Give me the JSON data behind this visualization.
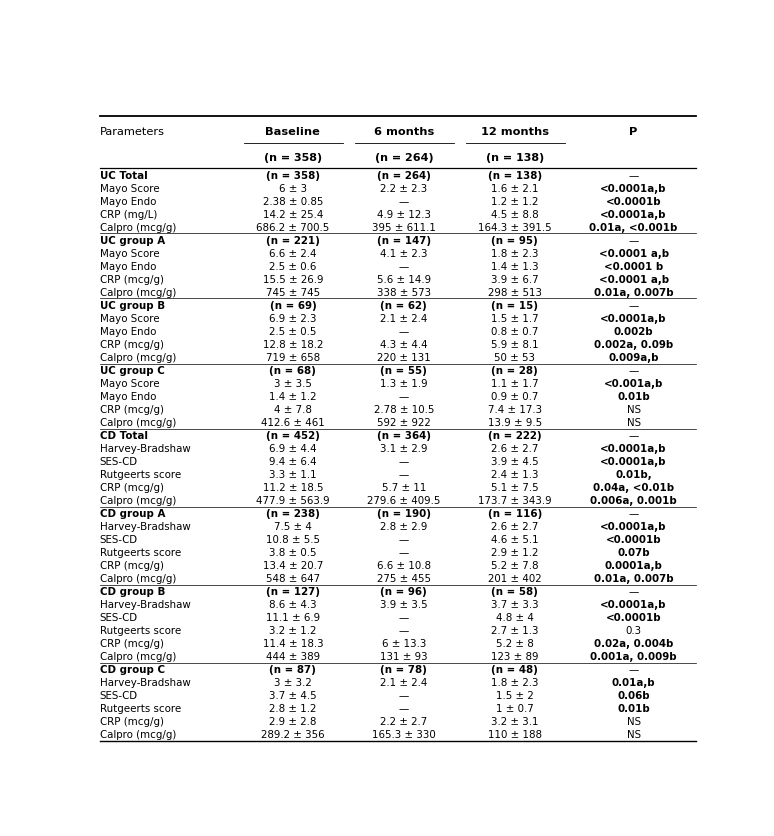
{
  "col_headers": [
    "Parameters",
    "Baseline",
    "6 months",
    "12 months",
    "P"
  ],
  "col_header_bold": [
    false,
    true,
    true,
    true,
    true
  ],
  "rows": [
    {
      "param": "UC Total",
      "baseline": "(n = 358)",
      "m6": "(n = 264)",
      "m12": "(n = 138)",
      "p": "",
      "is_group": true
    },
    {
      "param": "Mayo Score",
      "baseline": "6 ± 3",
      "m6": "2.2 ± 2.3",
      "m12": "1.6 ± 2.1",
      "p": "<0.0001a,b",
      "p_bold": true
    },
    {
      "param": "Mayo Endo",
      "baseline": "2.38 ± 0.85",
      "m6": "—",
      "m12": "1.2 ± 1.2",
      "p": "<0.0001b",
      "p_bold": true
    },
    {
      "param": "CRP (mg/L)",
      "baseline": "14.2 ± 25.4",
      "m6": "4.9 ± 12.3",
      "m12": "4.5 ± 8.8",
      "p": "<0.0001a,b",
      "p_bold": true
    },
    {
      "param": "Calpro (mcg/g)",
      "baseline": "686.2 ± 700.5",
      "m6": "395 ± 611.1",
      "m12": "164.3 ± 391.5",
      "p": "0.01a, <0.001b",
      "p_bold": true
    },
    {
      "param": "UC group A",
      "baseline": "(n = 221)",
      "m6": "(n = 147)",
      "m12": "(n = 95)",
      "p": "",
      "is_group": true
    },
    {
      "param": "Mayo Score",
      "baseline": "6.6 ± 2.4",
      "m6": "4.1 ± 2.3",
      "m12": "1.8 ± 2.3",
      "p": "<0.0001 a,b",
      "p_bold": true
    },
    {
      "param": "Mayo Endo",
      "baseline": "2.5 ± 0.6",
      "m6": "—",
      "m12": "1.4 ± 1.3",
      "p": "<0.0001 b",
      "p_bold": true
    },
    {
      "param": "CRP (mcg/g)",
      "baseline": "15.5 ± 26.9",
      "m6": "5.6 ± 14.9",
      "m12": "3.9 ± 6.7",
      "p": "<0.0001 a,b",
      "p_bold": true
    },
    {
      "param": "Calpro (mcg/g)",
      "baseline": "745 ± 745",
      "m6": "338 ± 573",
      "m12": "298 ± 513",
      "p": "0.01a, 0.007b",
      "p_bold": true
    },
    {
      "param": "UC group B",
      "baseline": "(n = 69)",
      "m6": "(n = 62)",
      "m12": "(n = 15)",
      "p": "",
      "is_group": true
    },
    {
      "param": "Mayo Score",
      "baseline": "6.9 ± 2.3",
      "m6": "2.1 ± 2.4",
      "m12": "1.5 ± 1.7",
      "p": "<0.0001a,b",
      "p_bold": true
    },
    {
      "param": "Mayo Endo",
      "baseline": "2.5 ± 0.5",
      "m6": "—",
      "m12": "0.8 ± 0.7",
      "p": "0.002b",
      "p_bold": true
    },
    {
      "param": "CRP (mcg/g)",
      "baseline": "12.8 ± 18.2",
      "m6": "4.3 ± 4.4",
      "m12": "5.9 ± 8.1",
      "p": "0.002a, 0.09b",
      "p_bold": true
    },
    {
      "param": "Calpro (mcg/g)",
      "baseline": "719 ± 658",
      "m6": "220 ± 131",
      "m12": "50 ± 53",
      "p": "0.009a,b",
      "p_bold": true
    },
    {
      "param": "UC group C",
      "baseline": "(n = 68)",
      "m6": "(n = 55)",
      "m12": "(n = 28)",
      "p": "",
      "is_group": true
    },
    {
      "param": "Mayo Score",
      "baseline": "3 ± 3.5",
      "m6": "1.3 ± 1.9",
      "m12": "1.1 ± 1.7",
      "p": "<0.001a,b",
      "p_bold": true
    },
    {
      "param": "Mayo Endo",
      "baseline": "1.4 ± 1.2",
      "m6": "—",
      "m12": "0.9 ± 0.7",
      "p": "0.01b",
      "p_bold": true
    },
    {
      "param": "CRP (mcg/g)",
      "baseline": "4 ± 7.8",
      "m6": "2.78 ± 10.5",
      "m12": "7.4 ± 17.3",
      "p": "NS",
      "p_bold": false
    },
    {
      "param": "Calpro (mcg/g)",
      "baseline": "412.6 ± 461",
      "m6": "592 ± 922",
      "m12": "13.9 ± 9.5",
      "p": "NS",
      "p_bold": false
    },
    {
      "param": "CD Total",
      "baseline": "(n = 452)",
      "m6": "(n = 364)",
      "m12": "(n = 222)",
      "p": "",
      "is_group": true
    },
    {
      "param": "Harvey-Bradshaw",
      "baseline": "6.9 ± 4.4",
      "m6": "3.1 ± 2.9",
      "m12": "2.6 ± 2.7",
      "p": "<0.0001a,b",
      "p_bold": true
    },
    {
      "param": "SES-CD",
      "baseline": "9.4 ± 6.4",
      "m6": "—",
      "m12": "3.9 ± 4.5",
      "p": "<0.0001a,b",
      "p_bold": true
    },
    {
      "param": "Rutgeerts score",
      "baseline": "3.3 ± 1.1",
      "m6": "—",
      "m12": "2.4 ± 1.3",
      "p": "0.01b,",
      "p_bold": true
    },
    {
      "param": "CRP (mcg/g)",
      "baseline": "11.2 ± 18.5",
      "m6": "5.7 ± 11",
      "m12": "5.1 ± 7.5",
      "p": "0.04a, <0.01b",
      "p_bold": true
    },
    {
      "param": "Calpro (mcg/g)",
      "baseline": "477.9 ± 563.9",
      "m6": "279.6 ± 409.5",
      "m12": "173.7 ± 343.9",
      "p": "0.006a, 0.001b",
      "p_bold": true
    },
    {
      "param": "CD group A",
      "baseline": "(n = 238)",
      "m6": "(n = 190)",
      "m12": "(n = 116)",
      "p": "",
      "is_group": true
    },
    {
      "param": "Harvey-Bradshaw",
      "baseline": "7.5 ± 4",
      "m6": "2.8 ± 2.9",
      "m12": "2.6 ± 2.7",
      "p": "<0.0001a,b",
      "p_bold": true
    },
    {
      "param": "SES-CD",
      "baseline": "10.8 ± 5.5",
      "m6": "—",
      "m12": "4.6 ± 5.1",
      "p": "<0.0001b",
      "p_bold": true
    },
    {
      "param": "Rutgeerts score",
      "baseline": "3.8 ± 0.5",
      "m6": "—",
      "m12": "2.9 ± 1.2",
      "p": "0.07b",
      "p_bold": true
    },
    {
      "param": "CRP (mcg/g)",
      "baseline": "13.4 ± 20.7",
      "m6": "6.6 ± 10.8",
      "m12": "5.2 ± 7.8",
      "p": "0.0001a,b",
      "p_bold": true
    },
    {
      "param": "Calpro (mcg/g)",
      "baseline": "548 ± 647",
      "m6": "275 ± 455",
      "m12": "201 ± 402",
      "p": "0.01a, 0.007b",
      "p_bold": true
    },
    {
      "param": "CD group B",
      "baseline": "(n = 127)",
      "m6": "(n = 96)",
      "m12": "(n = 58)",
      "p": "",
      "is_group": true
    },
    {
      "param": "Harvey-Bradshaw",
      "baseline": "8.6 ± 4.3",
      "m6": "3.9 ± 3.5",
      "m12": "3.7 ± 3.3",
      "p": "<0.0001a,b",
      "p_bold": true
    },
    {
      "param": "SES-CD",
      "baseline": "11.1 ± 6.9",
      "m6": "—",
      "m12": "4.8 ± 4",
      "p": "<0.0001b",
      "p_bold": true
    },
    {
      "param": "Rutgeerts score",
      "baseline": "3.2 ± 1.2",
      "m6": "—",
      "m12": "2.7 ± 1.3",
      "p": "0.3",
      "p_bold": false
    },
    {
      "param": "CRP (mcg/g)",
      "baseline": "11.4 ± 18.3",
      "m6": "6 ± 13.3",
      "m12": "5.2 ± 8",
      "p": "0.02a, 0.004b",
      "p_bold": true
    },
    {
      "param": "Calpro (mcg/g)",
      "baseline": "444 ± 389",
      "m6": "131 ± 93",
      "m12": "123 ± 89",
      "p": "0.001a, 0.009b",
      "p_bold": true
    },
    {
      "param": "CD group C",
      "baseline": "(n = 87)",
      "m6": "(n = 78)",
      "m12": "(n = 48)",
      "p": "",
      "is_group": true
    },
    {
      "param": "Harvey-Bradshaw",
      "baseline": "3 ± 3.2",
      "m6": "2.1 ± 2.4",
      "m12": "1.8 ± 2.3",
      "p": "0.01a,b",
      "p_bold": true
    },
    {
      "param": "SES-CD",
      "baseline": "3.7 ± 4.5",
      "m6": "—",
      "m12": "1.5 ± 2",
      "p": "0.06b",
      "p_bold": true
    },
    {
      "param": "Rutgeerts score",
      "baseline": "2.8 ± 1.2",
      "m6": "—",
      "m12": "1 ± 0.7",
      "p": "0.01b",
      "p_bold": true
    },
    {
      "param": "CRP (mcg/g)",
      "baseline": "2.9 ± 2.8",
      "m6": "2.2 ± 2.7",
      "m12": "3.2 ± 3.1",
      "p": "NS",
      "p_bold": false
    },
    {
      "param": "Calpro (mcg/g)",
      "baseline": "289.2 ± 356",
      "m6": "165.3 ± 330",
      "m12": "110 ± 188",
      "p": "NS",
      "p_bold": false
    }
  ],
  "background_color": "#ffffff"
}
